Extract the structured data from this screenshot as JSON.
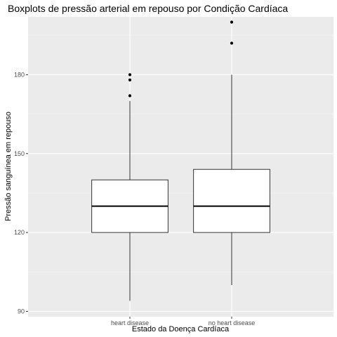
{
  "chart_data": {
    "type": "boxplot",
    "title": "Boxplots de pressão arterial em repouso por Condição Cardíaca",
    "xlabel": "Estado da Doença Cardíaca",
    "ylabel": "Pressão sanguínea em repouso",
    "ylim": [
      88,
      202
    ],
    "y_ticks": [
      90,
      120,
      150,
      180
    ],
    "y_tick_labels": [
      "90",
      "120",
      "150",
      "180"
    ],
    "categories": [
      "heart disease",
      "no heart disease"
    ],
    "boxes": [
      {
        "category": "heart disease",
        "whisker_low": 94,
        "q1": 120,
        "median": 130,
        "q3": 140,
        "whisker_high": 170,
        "outliers": [
          172,
          178,
          180
        ]
      },
      {
        "category": "no heart disease",
        "whisker_low": 100,
        "q1": 120,
        "median": 130,
        "q3": 144,
        "whisker_high": 180,
        "outliers": [
          192,
          200
        ]
      }
    ],
    "grid": true,
    "colors": {
      "panel_background": "#ebebeb",
      "grid_major": "#ffffff",
      "grid_minor": "#f5f5f5",
      "box_fill": "#ffffff",
      "box_stroke": "#333333",
      "outlier": "#000000"
    }
  }
}
